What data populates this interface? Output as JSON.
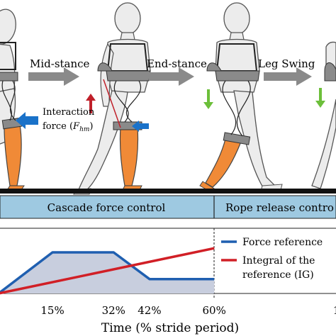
{
  "phases": [
    "Mid-stance",
    "End-stance",
    "Leg Swing"
  ],
  "interaction_label": "Interaction",
  "interaction_force_prefix": "force (",
  "interaction_symbol": "F",
  "interaction_subscript": "hm",
  "interaction_force_suffix": ")",
  "control_bands": [
    "Cascade force control",
    "Rope release contro"
  ],
  "legend": [
    {
      "label": "Force reference",
      "color": "#1f5fb0"
    },
    {
      "label": "Integral of the",
      "color": "#d11f26"
    },
    {
      "label": "reference (IG)",
      "color": ""
    }
  ],
  "colors": {
    "band_fill": "#9ec9e1",
    "area_fill": "#c8cede",
    "leg": "#f08a37",
    "device": "#8a8a8a",
    "body_fill": "#ececec",
    "push_arrow": "#1a72c9",
    "up_arrow": "#c0202a",
    "down_arrow": "#6cbf3a"
  },
  "icons": [
    "human-walking-figure",
    "exosuit-device-icon",
    "force-arrow-icon",
    "phase-arrow-icon"
  ],
  "chart_data": {
    "type": "line",
    "xlabel": "Time (% stride period)",
    "xticks": [
      "15%",
      "32%",
      "42%",
      "60%",
      "1"
    ],
    "series": [
      {
        "name": "Force reference",
        "x": [
          0,
          15,
          32,
          42,
          60
        ],
        "y": [
          0.0,
          1.0,
          1.0,
          0.35,
          0.35
        ]
      },
      {
        "name": "Integral of the reference (IG)",
        "x": [
          0,
          60
        ],
        "y": [
          0.0,
          1.1
        ]
      }
    ]
  }
}
